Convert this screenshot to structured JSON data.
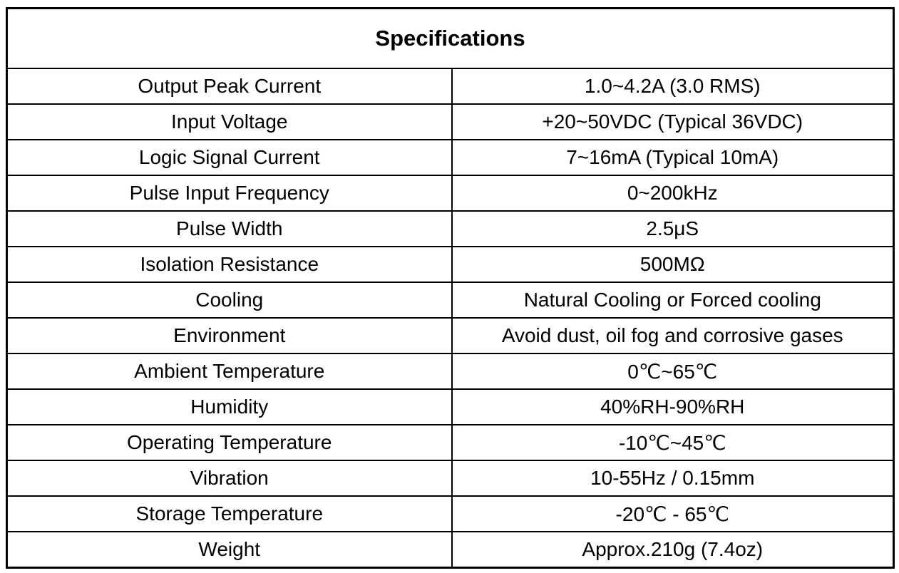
{
  "table": {
    "title": "Specifications",
    "rows": [
      [
        "Output Peak Current",
        "1.0~4.2A (3.0 RMS)"
      ],
      [
        "Input Voltage",
        "+20~50VDC (Typical 36VDC)"
      ],
      [
        "Logic Signal Current",
        "7~16mA (Typical 10mA)"
      ],
      [
        "Pulse Input Frequency",
        "0~200kHz"
      ],
      [
        "Pulse Width",
        "2.5μS"
      ],
      [
        "Isolation Resistance",
        "500MΩ"
      ],
      [
        "Cooling",
        "Natural Cooling or Forced cooling"
      ],
      [
        "Environment",
        "Avoid dust, oil fog and corrosive gases"
      ],
      [
        "Ambient Temperature",
        "0℃~65℃"
      ],
      [
        "Humidity",
        "40%RH-90%RH"
      ],
      [
        "Operating Temperature",
        "-10℃~45℃"
      ],
      [
        "Vibration",
        "10-55Hz / 0.15mm"
      ],
      [
        "Storage Temperature",
        "-20℃ - 65℃"
      ],
      [
        "Weight",
        "Approx.210g (7.4oz)"
      ]
    ]
  }
}
